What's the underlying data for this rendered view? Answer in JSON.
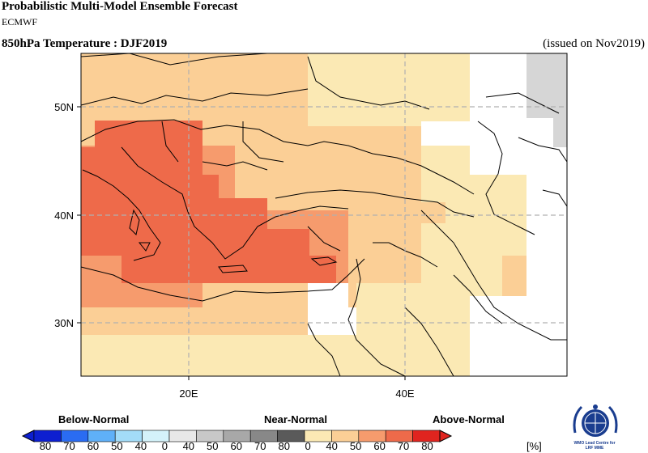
{
  "header": {
    "title": "Probabilistic Multi-Model Ensemble Forecast",
    "subtitle": "ECMWF",
    "variable": "850hPa Temperature : DJF2019",
    "issued": "(issued on Nov2019)"
  },
  "map": {
    "lon_range": [
      10,
      55
    ],
    "lat_range": [
      25,
      55
    ],
    "lat_ticks": [
      {
        "value": 30,
        "label": "30N"
      },
      {
        "value": 40,
        "label": "40N"
      },
      {
        "value": 50,
        "label": "50N"
      }
    ],
    "lon_ticks": [
      {
        "value": 20,
        "label": "20E"
      },
      {
        "value": 40,
        "label": "40E"
      }
    ],
    "grid": true,
    "colors": {
      "above_40": "#fbe9b4",
      "above_50": "#fbcf96",
      "above_60": "#f69b6d",
      "above_70": "#ee6a4a",
      "above_80": "#e0241f",
      "near_normal": "#d6d6d6",
      "no_signal": "#ffffff"
    }
  },
  "legend": {
    "below_label": "Below-Normal",
    "near_label": "Near-Normal",
    "above_label": "Above-Normal",
    "unit": "[%]",
    "ticks": [
      "80",
      "70",
      "60",
      "50",
      "40",
      "0",
      "40",
      "50",
      "60",
      "70",
      "80",
      "0",
      "40",
      "50",
      "60",
      "70",
      "80"
    ],
    "below_colors": [
      "#0d1fd0",
      "#2a6cf2",
      "#5fb0f8",
      "#a3dcf8",
      "#d4f2fa"
    ],
    "near_colors": [
      "#e8e8e8",
      "#c8c8c8",
      "#a8a8a8",
      "#888888",
      "#5a5a5a"
    ],
    "above_colors": [
      "#fbe9b4",
      "#fbcf96",
      "#f69b6d",
      "#ee6a4a",
      "#e0241f"
    ]
  },
  "logo": {
    "text_line1": "WMO Lead Centre for",
    "text_line2": "LRF MME"
  }
}
